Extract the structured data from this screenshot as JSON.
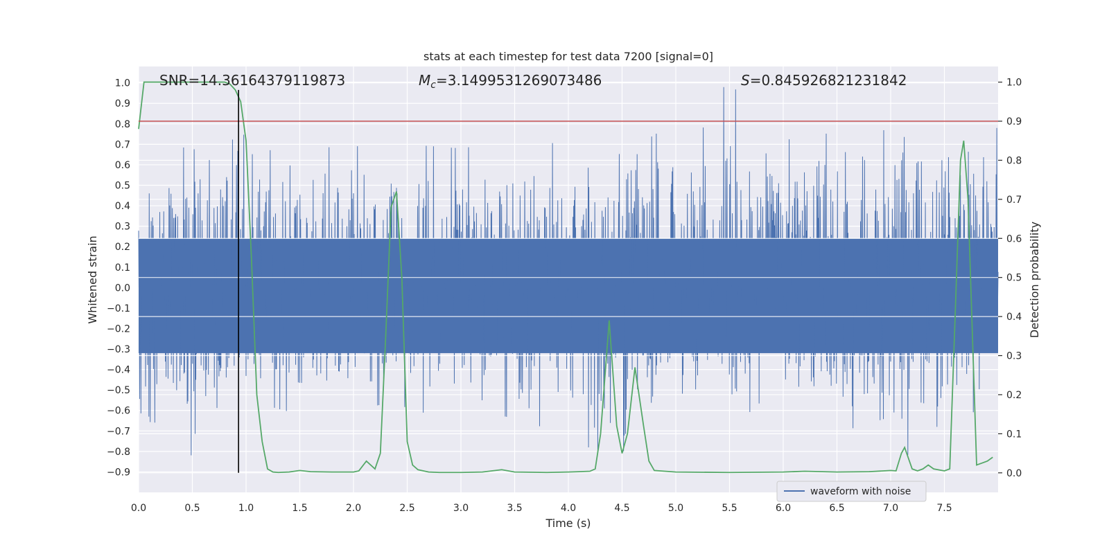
{
  "chart_data": {
    "type": "line",
    "title": "stats at each timestep for test data 7200 [signal=0]",
    "xlabel": "Time (s)",
    "ylabel_left": "Whitened strain",
    "ylabel_right": "Detection probability",
    "xlim": [
      0.0,
      8.0
    ],
    "ylim_left": [
      -1.0,
      1.08
    ],
    "ylim_right": [
      -0.05,
      1.04
    ],
    "x_ticks": [
      "0.0",
      "0.5",
      "1.0",
      "1.5",
      "2.0",
      "2.5",
      "3.0",
      "3.5",
      "4.0",
      "4.5",
      "5.0",
      "5.5",
      "6.0",
      "6.5",
      "7.0",
      "7.5"
    ],
    "y_left_ticks": [
      "-0.9",
      "-0.8",
      "-0.7",
      "-0.6",
      "-0.5",
      "-0.4",
      "-0.3",
      "-0.2",
      "-0.1",
      "0.0",
      "0.1",
      "0.2",
      "0.3",
      "0.4",
      "0.5",
      "0.6",
      "0.7",
      "0.8",
      "0.9",
      "1.0"
    ],
    "y_right_ticks": [
      "0.0",
      "0.1",
      "0.2",
      "0.3",
      "0.4",
      "0.5",
      "0.6",
      "0.7",
      "0.8",
      "0.9",
      "1.0"
    ],
    "grid": true,
    "annotations": {
      "snr": "SNR=14.36164379119873",
      "mc_symbol": "M",
      "mc_sub": "c",
      "mc_value": "=3.1499531269073486",
      "s_symbol": "S",
      "s_value": "=0.845926821231842"
    },
    "threshold_right": 0.9,
    "marker_time": 0.93,
    "legend": {
      "label": "waveform with noise",
      "placement": "lower-right"
    },
    "colors": {
      "waveform": "#4c72b0",
      "probability": "#55a868",
      "threshold": "#c44e52",
      "marker": "#000000",
      "background": "#eaeaf2",
      "grid": "#ffffff"
    },
    "series": [
      {
        "name": "waveform with noise",
        "axis": "left",
        "envelope": {
          "x": [
            0.0,
            0.5,
            1.0,
            1.5,
            2.0,
            2.5,
            3.0,
            3.5,
            4.0,
            4.5,
            5.0,
            5.5,
            6.0,
            6.5,
            7.0,
            7.5,
            8.0
          ],
          "y_max": [
            0.45,
            0.73,
            0.82,
            0.68,
            0.69,
            0.7,
            0.68,
            0.72,
            0.7,
            0.65,
            0.81,
            1.0,
            0.72,
            0.76,
            0.77,
            0.78,
            0.78
          ],
          "y_min": [
            -0.86,
            -0.89,
            -0.55,
            -0.62,
            -0.56,
            -0.68,
            -0.58,
            -0.64,
            -0.72,
            -0.88,
            -0.58,
            -0.6,
            -0.62,
            -0.63,
            -0.82,
            -0.81,
            -0.58
          ]
        }
      },
      {
        "name": "",
        "axis": "right",
        "x": [
          0.0,
          0.05,
          0.1,
          0.2,
          0.4,
          0.6,
          0.8,
          0.85,
          0.9,
          0.95,
          1.0,
          1.05,
          1.1,
          1.15,
          1.2,
          1.25,
          1.3,
          1.4,
          1.5,
          1.6,
          1.8,
          2.0,
          2.05,
          2.12,
          2.2,
          2.25,
          2.3,
          2.35,
          2.4,
          2.45,
          2.5,
          2.55,
          2.6,
          2.7,
          2.8,
          3.0,
          3.2,
          3.38,
          3.5,
          3.8,
          4.0,
          4.1,
          4.2,
          4.25,
          4.3,
          4.38,
          4.45,
          4.5,
          4.55,
          4.62,
          4.7,
          4.75,
          4.8,
          5.0,
          5.5,
          6.0,
          6.2,
          6.5,
          6.8,
          7.0,
          7.05,
          7.1,
          7.13,
          7.2,
          7.25,
          7.3,
          7.35,
          7.4,
          7.5,
          7.55,
          7.6,
          7.65,
          7.68,
          7.72,
          7.8,
          7.85,
          7.9,
          7.95
        ],
        "y": [
          0.88,
          1.0,
          1.0,
          1.0,
          1.0,
          1.0,
          1.0,
          0.995,
          0.98,
          0.95,
          0.85,
          0.55,
          0.2,
          0.08,
          0.01,
          0.002,
          0.001,
          0.002,
          0.006,
          0.003,
          0.002,
          0.002,
          0.005,
          0.03,
          0.01,
          0.05,
          0.35,
          0.68,
          0.72,
          0.5,
          0.08,
          0.02,
          0.008,
          0.002,
          0.001,
          0.001,
          0.002,
          0.008,
          0.002,
          0.001,
          0.002,
          0.003,
          0.004,
          0.01,
          0.1,
          0.39,
          0.12,
          0.05,
          0.1,
          0.27,
          0.12,
          0.03,
          0.006,
          0.002,
          0.001,
          0.002,
          0.004,
          0.002,
          0.003,
          0.006,
          0.005,
          0.05,
          0.065,
          0.01,
          0.005,
          0.01,
          0.02,
          0.01,
          0.005,
          0.01,
          0.4,
          0.8,
          0.85,
          0.7,
          0.02,
          0.025,
          0.03,
          0.04
        ]
      }
    ]
  }
}
